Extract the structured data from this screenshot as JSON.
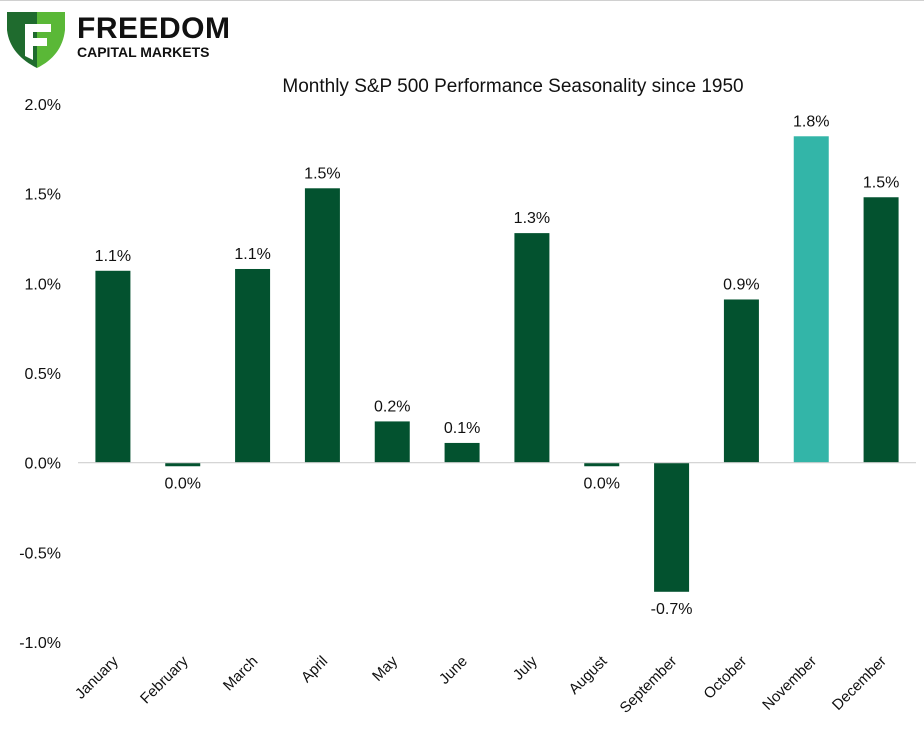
{
  "brand": {
    "name_line1": "FREEDOM",
    "name_line2": "CAPITAL MARKETS",
    "colors": {
      "logo_dark": "#1f6b2e",
      "logo_light": "#5ab837"
    }
  },
  "chart_data": {
    "type": "bar",
    "title": "Monthly S&P 500 Performance Seasonality since 1950",
    "xlabel": "",
    "ylabel": "",
    "ylim": [
      -1.0,
      2.0
    ],
    "y_ticks": [
      "2.0%",
      "1.5%",
      "1.0%",
      "0.5%",
      "0.0%",
      "-0.5%",
      "-1.0%"
    ],
    "y_tick_values": [
      2.0,
      1.5,
      1.0,
      0.5,
      0.0,
      -0.5,
      -1.0
    ],
    "grid": false,
    "legend": "none",
    "categories": [
      "January",
      "February",
      "March",
      "April",
      "May",
      "June",
      "July",
      "August",
      "September",
      "October",
      "November",
      "December"
    ],
    "values": [
      1.07,
      -0.02,
      1.08,
      1.53,
      0.23,
      0.11,
      1.28,
      -0.02,
      -0.72,
      0.91,
      1.82,
      1.48
    ],
    "data_labels": [
      "1.1%",
      "0.0%",
      "1.1%",
      "1.5%",
      "0.2%",
      "0.1%",
      "1.3%",
      "0.0%",
      "-0.7%",
      "0.9%",
      "1.8%",
      "1.5%"
    ],
    "colors": {
      "default": "#03522f",
      "highlight": "#33b5a8"
    },
    "highlight_category": "November"
  }
}
